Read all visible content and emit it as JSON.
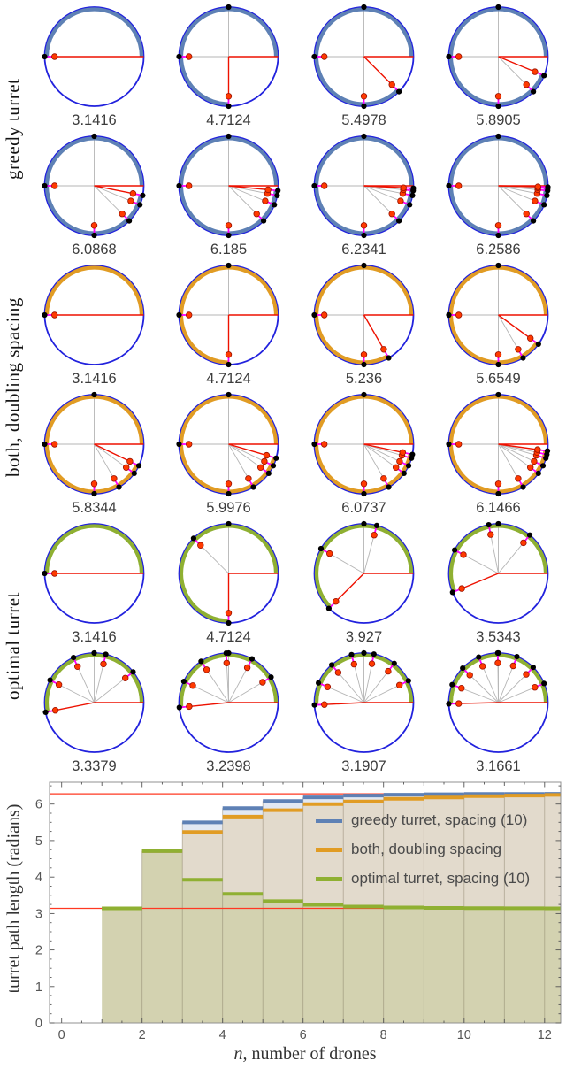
{
  "figure": {
    "groups": [
      {
        "label": "greedy turret",
        "color": "#5e81b5",
        "values": [
          "3.1416",
          "4.7124",
          "5.4978",
          "5.8905",
          "6.0868",
          "6.185",
          "6.2341",
          "6.2586"
        ]
      },
      {
        "label": "both, doubling spacing",
        "color": "#e19c24",
        "values": [
          "3.1416",
          "4.7124",
          "5.236",
          "5.6549",
          "5.8344",
          "5.9976",
          "6.0737",
          "6.1466"
        ]
      },
      {
        "label": "optimal turret",
        "color": "#8fb032",
        "values": [
          "3.1416",
          "4.7124",
          "3.927",
          "3.5343",
          "3.3379",
          "3.2398",
          "3.1907",
          "3.1661"
        ]
      }
    ],
    "diagram_colors": {
      "circle": "#2222dd",
      "turret_direction": "#ee1100",
      "drone_path": "#ff00ff",
      "spoke": "#b5b5b5",
      "drone_dot": "#000000",
      "intercept_dot": "#ff3a00",
      "intercept_dot_edge": "#991100",
      "caption": "#3c3c3c"
    }
  },
  "chart_data": {
    "type": "area",
    "step": "post",
    "x": [
      1,
      2,
      3,
      4,
      5,
      6,
      7,
      8,
      9,
      10,
      11,
      12
    ],
    "series": [
      {
        "name": "greedy turret, spacing (10)",
        "color": "#5e81b5",
        "values": [
          3.1416,
          4.7124,
          5.4978,
          5.8905,
          6.0868,
          6.185,
          6.2341,
          6.2586,
          6.2709,
          6.2771,
          6.2801,
          6.2817
        ]
      },
      {
        "name": "both, doubling spacing",
        "color": "#e19c24",
        "values": [
          3.1416,
          4.7124,
          5.236,
          5.6549,
          5.8344,
          5.9976,
          6.0737,
          6.1466,
          6.1819,
          6.2163,
          6.2333,
          6.2501
        ]
      },
      {
        "name": "optimal turret, spacing (10)",
        "color": "#8fb032",
        "values": [
          3.1416,
          4.7124,
          3.927,
          3.5343,
          3.3379,
          3.2398,
          3.1907,
          3.1661,
          3.1539,
          3.1477,
          3.1447,
          3.1431
        ]
      }
    ],
    "reference_lines": [
      3.1416,
      6.2832
    ],
    "reference_line_color": "#ff3822",
    "xlabel": "n, number of drones",
    "ylabel": "turret path length (radians)",
    "xlim": [
      -0.3,
      12.4
    ],
    "ylim": [
      0,
      6.6
    ],
    "xticks": [
      0,
      2,
      4,
      6,
      8,
      10,
      12
    ],
    "yticks": [
      0,
      1,
      2,
      3,
      4,
      5,
      6
    ],
    "grid": false,
    "legend_position": "upper right inside"
  }
}
